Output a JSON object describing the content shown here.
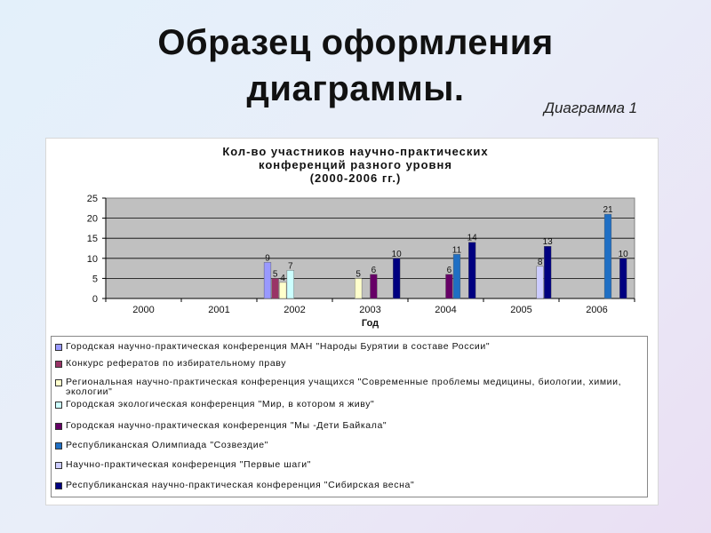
{
  "slide": {
    "title_line1": "Образец  оформления",
    "title_line2": "диаграммы.",
    "caption": "Диаграмма 1"
  },
  "chart_data": {
    "type": "bar",
    "title_lines": [
      "Кол-во участников научно-практических",
      "конференций разного уровня",
      "(2000-2006 гг.)"
    ],
    "xlabel": "Год",
    "ylabel": "",
    "ylim": [
      0,
      25
    ],
    "yticks": [
      0,
      5,
      10,
      15,
      20,
      25
    ],
    "grid": true,
    "legend_position": "bottom",
    "categories": [
      "2000",
      "2001",
      "2002",
      "2003",
      "2004",
      "2005",
      "2006"
    ],
    "series": [
      {
        "name": "Городская научно-практическая конференция МАН \"Народы Бурятии в составе России\"",
        "color": "#9999ff",
        "values": [
          null,
          null,
          9,
          null,
          null,
          null,
          null
        ]
      },
      {
        "name": "Конкурс рефератов по избирательному праву",
        "color": "#993366",
        "values": [
          null,
          null,
          5,
          null,
          null,
          null,
          null
        ]
      },
      {
        "name": "Региональная научно-практическая конференция учащихся \"Современные проблемы медицины, биологии, химии, экологии\"",
        "color": "#ffffcc",
        "values": [
          null,
          null,
          4,
          5,
          null,
          null,
          null
        ]
      },
      {
        "name": "Городская экологическая конференция \"Мир, в котором я живу\"",
        "color": "#ccffff",
        "values": [
          null,
          null,
          7,
          null,
          null,
          null,
          null
        ]
      },
      {
        "name": "Городская научно-практическая конференция \"Мы -Дети Байкала\"",
        "color": "#660066",
        "values": [
          null,
          null,
          null,
          6,
          6,
          null,
          null
        ]
      },
      {
        "name": "Республиканская Олимпиада \"Созвездие\"",
        "color": "#1f6fc4",
        "values": [
          null,
          null,
          null,
          null,
          11,
          null,
          21
        ]
      },
      {
        "name": "Научно-практическая конференция \"Первые шаги\"",
        "color": "#ccccff",
        "values": [
          null,
          null,
          null,
          null,
          null,
          8,
          null
        ]
      },
      {
        "name": "Республиканская научно-практическая конференция \"Сибирская весна\"",
        "color": "#000080",
        "values": [
          null,
          null,
          null,
          10,
          14,
          13,
          10
        ]
      }
    ]
  }
}
